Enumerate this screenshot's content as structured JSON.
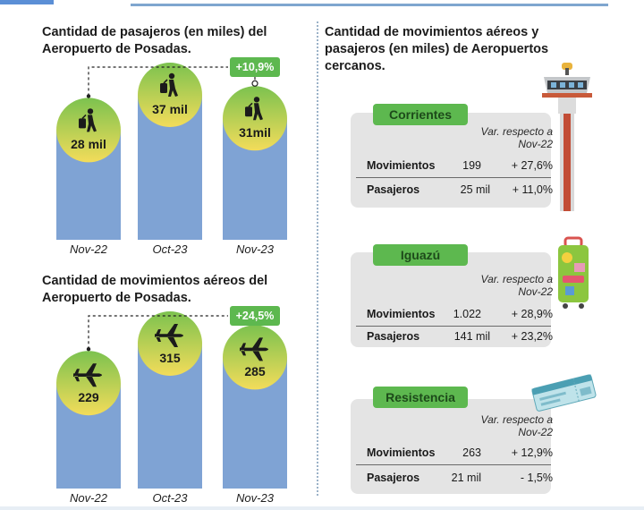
{
  "left_panel": {
    "passengers_title": "Cantidad de pasajeros (en miles) del Aeropuerto de Posadas.",
    "movements_title": "Cantidad de movimientos aéreos del Aeropuerto de Posadas."
  },
  "right_panel": {
    "title": "Cantidad de movimientos aéreos y pasajeros (en miles) de Aeropuertos cercanos.",
    "cards": [
      {
        "name": "Corrientes",
        "note": "Var. respecto a Nov-22",
        "rows": [
          {
            "label": "Movimientos",
            "value": "199",
            "var": "+ 27,6%"
          },
          {
            "label": "Pasajeros",
            "value": "25 mil",
            "var": "+ 11,0%"
          }
        ]
      },
      {
        "name": "Iguazú",
        "note": "Var. respecto a Nov-22",
        "rows": [
          {
            "label": "Movimientos",
            "value": "1.022",
            "var": "+ 28,9%"
          },
          {
            "label": "Pasajeros",
            "value": "141 mil",
            "var": "+ 23,2%"
          }
        ]
      },
      {
        "name": "Resistencia",
        "note": "Var. respecto a Nov-22",
        "rows": [
          {
            "label": "Movimientos",
            "value": "263",
            "var": "+ 12,9%"
          },
          {
            "label": "Pasajeros",
            "value": "21 mil",
            "var": "- 1,5%"
          }
        ]
      }
    ]
  },
  "chart_data": [
    {
      "type": "bar",
      "title": "Cantidad de pasajeros (en miles) del Aeropuerto de Posadas.",
      "categories": [
        "Nov-22",
        "Oct-23",
        "Nov-23"
      ],
      "values": [
        28,
        37,
        31
      ],
      "value_labels": [
        "28 mil",
        "37 mil",
        "31mil"
      ],
      "icon": "walking-traveler-icon",
      "annotation": "+10,9%",
      "colors": {
        "bar": "#7fa3d4",
        "top_green": "#7cc24f",
        "top_yellow": "#f3dc5a"
      }
    },
    {
      "type": "bar",
      "title": "Cantidad de movimientos aéreos del Aeropuerto de Posadas.",
      "categories": [
        "Nov-22",
        "Oct-23",
        "Nov-23"
      ],
      "values": [
        229,
        315,
        285
      ],
      "value_labels": [
        "229",
        "315",
        "285"
      ],
      "icon": "airplane-icon",
      "annotation": "+24,5%",
      "colors": {
        "bar": "#7fa3d4",
        "top_green": "#7cc24f",
        "top_yellow": "#f3dc5a"
      }
    }
  ]
}
